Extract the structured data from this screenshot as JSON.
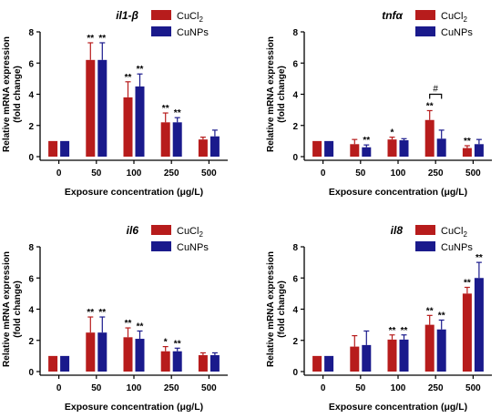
{
  "colors": {
    "CuCl2": "#b71c1c",
    "CuNPs": "#1a1a8c",
    "axis": "#000000"
  },
  "chart_data": [
    {
      "type": "bar",
      "title": "il1-β",
      "xlabel": "Exposure concentration (μg/L)",
      "ylabel": [
        "Relative mRNA expression",
        "(fold change)"
      ],
      "ylim": [
        0,
        8
      ],
      "yticks": [
        "0",
        "2",
        "4",
        "6",
        "8"
      ],
      "categories": [
        "0",
        "50",
        "100",
        "250",
        "500"
      ],
      "legend": {
        "position": "top-right",
        "entries": [
          {
            "name": "CuCl",
            "sub": "2"
          },
          {
            "name": "CuNPs",
            "sub": ""
          }
        ]
      },
      "series": [
        {
          "name": "CuCl2",
          "values": [
            1.0,
            6.2,
            3.8,
            2.2,
            1.1
          ],
          "errors": [
            0,
            1.1,
            1.0,
            0.6,
            0.15
          ],
          "marks": [
            "",
            "**",
            "**",
            "**",
            ""
          ]
        },
        {
          "name": "CuNPs",
          "values": [
            1.0,
            6.2,
            4.5,
            2.2,
            1.3
          ],
          "errors": [
            0,
            1.1,
            0.8,
            0.3,
            0.4
          ],
          "marks": [
            "",
            "**",
            "**",
            "**",
            ""
          ]
        }
      ],
      "bracket": null
    },
    {
      "type": "bar",
      "title": "tnfα",
      "xlabel": "Exposure concentration (μg/L)",
      "ylabel": [
        "Relative mRNA expression",
        "(fold change)"
      ],
      "ylim": [
        0,
        8
      ],
      "yticks": [
        "0",
        "2",
        "4",
        "6",
        "8"
      ],
      "categories": [
        "0",
        "50",
        "100",
        "250",
        "500"
      ],
      "legend": {
        "position": "top-right",
        "entries": [
          {
            "name": "CuCl",
            "sub": "2"
          },
          {
            "name": "CuNPs",
            "sub": ""
          }
        ]
      },
      "series": [
        {
          "name": "CuCl2",
          "values": [
            1.0,
            0.8,
            1.1,
            2.35,
            0.55
          ],
          "errors": [
            0,
            0.3,
            0.15,
            0.6,
            0.15
          ],
          "marks": [
            "",
            "",
            "*",
            "**",
            "**"
          ]
        },
        {
          "name": "CuNPs",
          "values": [
            1.0,
            0.6,
            1.05,
            1.15,
            0.8
          ],
          "errors": [
            0,
            0.15,
            0.1,
            0.55,
            0.3
          ],
          "marks": [
            "",
            "**",
            "",
            "",
            ""
          ]
        }
      ],
      "bracket": {
        "category": 3,
        "y": 4.0,
        "label": "#"
      }
    },
    {
      "type": "bar",
      "title": "il6",
      "xlabel": "Exposure concentration (μg/L)",
      "ylabel": [
        "Relative mRNA expression",
        "(fold change)"
      ],
      "ylim": [
        0,
        8
      ],
      "yticks": [
        "0",
        "2",
        "4",
        "6",
        "8"
      ],
      "categories": [
        "0",
        "50",
        "100",
        "250",
        "500"
      ],
      "legend": {
        "position": "top-right",
        "entries": [
          {
            "name": "CuCl",
            "sub": "2"
          },
          {
            "name": "CuNPs",
            "sub": ""
          }
        ]
      },
      "series": [
        {
          "name": "CuCl2",
          "values": [
            1.0,
            2.5,
            2.2,
            1.3,
            1.05
          ],
          "errors": [
            0,
            1.0,
            0.6,
            0.3,
            0.15
          ],
          "marks": [
            "",
            "**",
            "**",
            "*",
            ""
          ]
        },
        {
          "name": "CuNPs",
          "values": [
            1.0,
            2.5,
            2.1,
            1.3,
            1.05
          ],
          "errors": [
            0,
            1.0,
            0.5,
            0.2,
            0.15
          ],
          "marks": [
            "",
            "**",
            "**",
            "**",
            ""
          ]
        }
      ],
      "bracket": null
    },
    {
      "type": "bar",
      "title": "il8",
      "xlabel": "Exposure concentration (μg/L)",
      "ylabel": [
        "Relative mRNA expression",
        "(fold change)"
      ],
      "ylim": [
        0,
        8
      ],
      "yticks": [
        "0",
        "2",
        "4",
        "6",
        "8"
      ],
      "categories": [
        "0",
        "50",
        "100",
        "250",
        "500"
      ],
      "legend": {
        "position": "top-right",
        "entries": [
          {
            "name": "CuCl",
            "sub": "2"
          },
          {
            "name": "CuNPs",
            "sub": ""
          }
        ]
      },
      "series": [
        {
          "name": "CuCl2",
          "values": [
            1.0,
            1.6,
            2.05,
            3.0,
            5.0
          ],
          "errors": [
            0,
            0.7,
            0.3,
            0.6,
            0.4
          ],
          "marks": [
            "",
            "",
            "**",
            "**",
            "**"
          ]
        },
        {
          "name": "CuNPs",
          "values": [
            1.0,
            1.7,
            2.05,
            2.7,
            6.0
          ],
          "errors": [
            0,
            0.9,
            0.3,
            0.6,
            1.0
          ],
          "marks": [
            "",
            "",
            "**",
            "**",
            "**"
          ]
        }
      ],
      "bracket": null
    }
  ]
}
